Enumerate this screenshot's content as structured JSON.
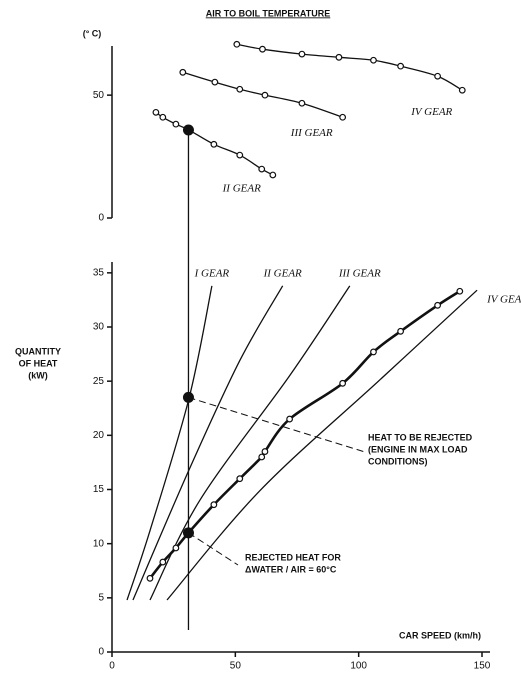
{
  "chart_data": [
    {
      "type": "line",
      "title": "AIR TO BOIL TEMPERATURE",
      "ylabel": "(° C)",
      "xlim": [
        0,
        150
      ],
      "ylim": [
        0,
        70
      ],
      "yticks": [
        0,
        50
      ],
      "series": [
        {
          "name": "IV GEAR",
          "color": "#111111",
          "marker": true,
          "x": [
            50.6,
            61,
            77,
            92,
            106,
            117,
            132,
            142
          ],
          "values": [
            70.7,
            68.7,
            66.7,
            65.4,
            64.2,
            61.8,
            57.7,
            52
          ]
        },
        {
          "name": "III GEAR",
          "color": "#111111",
          "marker": true,
          "x": [
            28.7,
            41.7,
            51.8,
            62,
            77,
            93.5
          ],
          "values": [
            59.3,
            55.3,
            52.4,
            50,
            46.7,
            41
          ]
        },
        {
          "name": "II GEAR",
          "color": "#111111",
          "marker": true,
          "x": [
            17.8,
            20.6,
            25.9,
            31.2,
            41.3,
            51.8,
            60.7,
            65.2
          ],
          "values": [
            43,
            41,
            38.2,
            35.8,
            30,
            25.6,
            19.9,
            17.5
          ]
        }
      ],
      "points": {
        "x": [
          31
        ],
        "values": [
          35.8
        ]
      }
    },
    {
      "type": "line",
      "xlabel": "CAR SPEED  (km/h)",
      "ylabel": [
        "QUANTITY",
        "OF HEAT",
        "(kW)"
      ],
      "xlim": [
        0,
        150
      ],
      "ylim": [
        0,
        36
      ],
      "xticks": [
        0,
        50,
        100,
        150
      ],
      "yticks": [
        0,
        5,
        10,
        15,
        20,
        25,
        30,
        35
      ],
      "series": [
        {
          "name": "I GEAR",
          "color": "#111111",
          "marker": false,
          "x": [
            6.1,
            15.4,
            31.2,
            40.5
          ],
          "values": [
            4.8,
            11.2,
            23.4,
            33.8
          ]
        },
        {
          "name": "II GEAR",
          "color": "#111111",
          "marker": false,
          "x": [
            8.5,
            31.2,
            51.8,
            69.2
          ],
          "values": [
            4.8,
            16.8,
            26.9,
            33.8
          ]
        },
        {
          "name": "III GEAR",
          "color": "#111111",
          "marker": false,
          "x": [
            15.4,
            35.6,
            72,
            96.4
          ],
          "values": [
            4.8,
            14,
            25.5,
            33.8
          ]
        },
        {
          "name": "IV GEAR",
          "color": "#111111",
          "marker": false,
          "x": [
            22.3,
            60,
            108.5,
            148
          ],
          "values": [
            4.8,
            14.9,
            25.1,
            33.4
          ]
        },
        {
          "color": "#111111",
          "marker": true,
          "bold": true,
          "x": [
            15.4,
            20.6,
            25.9,
            31,
            41.3,
            51.8,
            60.7,
            62,
            72,
            93.5,
            106,
            117,
            132,
            141
          ],
          "values": [
            6.8,
            8.3,
            9.6,
            11,
            13.6,
            16,
            18,
            18.5,
            21.5,
            24.8,
            27.7,
            29.6,
            32,
            33.3
          ]
        }
      ],
      "points": {
        "x": [
          31,
          31
        ],
        "values": [
          23.5,
          11
        ]
      },
      "annotations": [
        [
          "HEAT TO BE REJECTED",
          "(ENGINE IN MAX LOAD",
          "CONDITIONS)"
        ],
        [
          "REJECTED HEAT FOR",
          "ΔWATER / AIR  = 60°C"
        ]
      ]
    }
  ]
}
